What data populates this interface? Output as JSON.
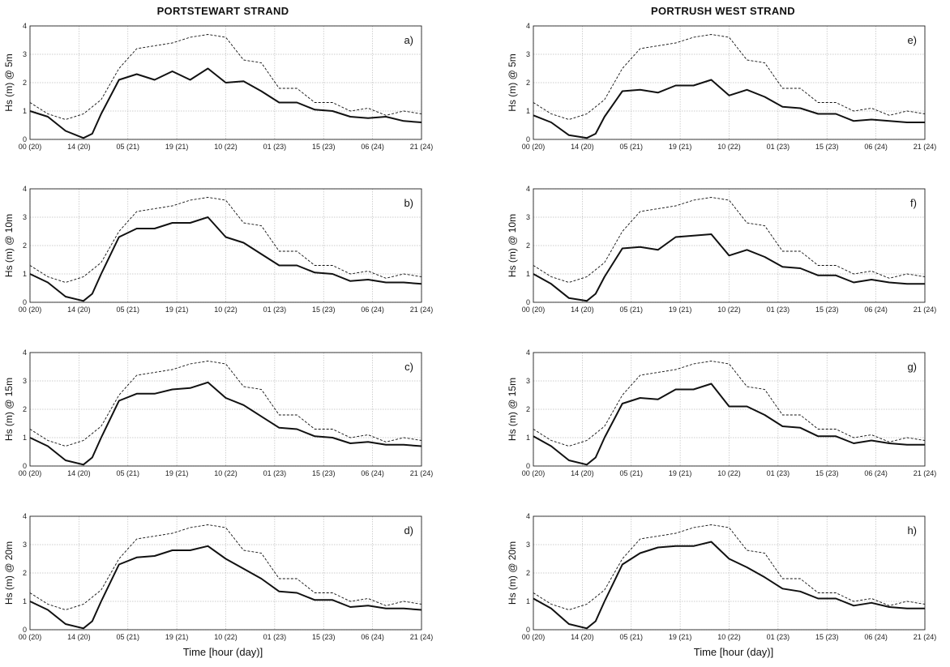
{
  "titles": {
    "left": "PORTSTEWART STRAND",
    "right": "PORTRUSH WEST STRAND"
  },
  "xlabel": "Time [hour (day)]",
  "chart_data": [
    {
      "type": "line",
      "panel": "a)",
      "ylabel": "Hs (m) @ 5m",
      "ylim": [
        0,
        4
      ],
      "yticks": [
        "0",
        "1",
        "2",
        "3",
        "4"
      ],
      "xlim": [
        0,
        22
      ],
      "xticks": [
        "00 (20)",
        "14 (20)",
        "05 (21)",
        "19 (21)",
        "10 (22)",
        "01 (23)",
        "15 (23)",
        "06 (24)",
        "21 (24)"
      ],
      "grid": true,
      "series": [
        {
          "style": "solid",
          "x": [
            0,
            1,
            2,
            3,
            3.5,
            4,
            5,
            6,
            7,
            8,
            9,
            10,
            11,
            12,
            13,
            14,
            15,
            16,
            17,
            18,
            19,
            20,
            21,
            22
          ],
          "y": [
            1.0,
            0.8,
            0.3,
            0.05,
            0.2,
            0.9,
            2.1,
            2.3,
            2.1,
            2.4,
            2.1,
            2.5,
            2.0,
            2.05,
            1.7,
            1.3,
            1.3,
            1.05,
            1.0,
            0.8,
            0.75,
            0.8,
            0.65,
            0.6
          ]
        },
        {
          "style": "dashed",
          "x": [
            0,
            1,
            2,
            3,
            4,
            5,
            6,
            7,
            8,
            9,
            10,
            11,
            12,
            13,
            14,
            15,
            16,
            17,
            18,
            19,
            20,
            21,
            22
          ],
          "y": [
            1.3,
            0.9,
            0.7,
            0.9,
            1.4,
            2.5,
            3.2,
            3.3,
            3.4,
            3.6,
            3.7,
            3.6,
            2.8,
            2.7,
            1.8,
            1.8,
            1.3,
            1.3,
            1.0,
            1.1,
            0.85,
            1.0,
            0.9
          ]
        }
      ]
    },
    {
      "type": "line",
      "panel": "b)",
      "ylabel": "Hs (m) @ 10m",
      "ylim": [
        0,
        4
      ],
      "yticks": [
        "0",
        "1",
        "2",
        "3",
        "4"
      ],
      "xlim": [
        0,
        22
      ],
      "xticks": [
        "00 (20)",
        "14 (20)",
        "05 (21)",
        "19 (21)",
        "10 (22)",
        "01 (23)",
        "15 (23)",
        "06 (24)",
        "21 (24)"
      ],
      "grid": true,
      "series": [
        {
          "style": "solid",
          "x": [
            0,
            1,
            2,
            3,
            3.5,
            4,
            5,
            6,
            7,
            8,
            9,
            10,
            11,
            12,
            13,
            14,
            15,
            16,
            17,
            18,
            19,
            20,
            21,
            22
          ],
          "y": [
            1.0,
            0.7,
            0.2,
            0.05,
            0.3,
            1.0,
            2.3,
            2.6,
            2.6,
            2.8,
            2.8,
            3.0,
            2.3,
            2.1,
            1.7,
            1.3,
            1.3,
            1.05,
            1.0,
            0.75,
            0.8,
            0.7,
            0.7,
            0.65
          ]
        },
        {
          "style": "dashed",
          "x": [
            0,
            1,
            2,
            3,
            4,
            5,
            6,
            7,
            8,
            9,
            10,
            11,
            12,
            13,
            14,
            15,
            16,
            17,
            18,
            19,
            20,
            21,
            22
          ],
          "y": [
            1.3,
            0.9,
            0.7,
            0.9,
            1.4,
            2.5,
            3.2,
            3.3,
            3.4,
            3.6,
            3.7,
            3.6,
            2.8,
            2.7,
            1.8,
            1.8,
            1.3,
            1.3,
            1.0,
            1.1,
            0.85,
            1.0,
            0.9
          ]
        }
      ]
    },
    {
      "type": "line",
      "panel": "c)",
      "ylabel": "Hs (m) @ 15m",
      "ylim": [
        0,
        4
      ],
      "yticks": [
        "0",
        "1",
        "2",
        "3",
        "4"
      ],
      "xlim": [
        0,
        22
      ],
      "xticks": [
        "00 (20)",
        "14 (20)",
        "05 (21)",
        "19 (21)",
        "10 (22)",
        "01 (23)",
        "15 (23)",
        "06 (24)",
        "21 (24)"
      ],
      "grid": true,
      "series": [
        {
          "style": "solid",
          "x": [
            0,
            1,
            2,
            3,
            3.5,
            4,
            5,
            6,
            7,
            8,
            9,
            10,
            11,
            12,
            13,
            14,
            15,
            16,
            17,
            18,
            19,
            20,
            21,
            22
          ],
          "y": [
            1.0,
            0.7,
            0.2,
            0.05,
            0.3,
            1.0,
            2.3,
            2.55,
            2.55,
            2.7,
            2.75,
            2.95,
            2.4,
            2.15,
            1.75,
            1.35,
            1.3,
            1.05,
            1.0,
            0.8,
            0.85,
            0.75,
            0.75,
            0.7
          ]
        },
        {
          "style": "dashed",
          "x": [
            0,
            1,
            2,
            3,
            4,
            5,
            6,
            7,
            8,
            9,
            10,
            11,
            12,
            13,
            14,
            15,
            16,
            17,
            18,
            19,
            20,
            21,
            22
          ],
          "y": [
            1.3,
            0.9,
            0.7,
            0.9,
            1.4,
            2.5,
            3.2,
            3.3,
            3.4,
            3.6,
            3.7,
            3.6,
            2.8,
            2.7,
            1.8,
            1.8,
            1.3,
            1.3,
            1.0,
            1.1,
            0.85,
            1.0,
            0.9
          ]
        }
      ]
    },
    {
      "type": "line",
      "panel": "d)",
      "ylabel": "Hs (m) @ 20m",
      "ylim": [
        0,
        4
      ],
      "yticks": [
        "0",
        "1",
        "2",
        "3",
        "4"
      ],
      "xlim": [
        0,
        22
      ],
      "xticks": [
        "00 (20)",
        "14 (20)",
        "05 (21)",
        "19 (21)",
        "10 (22)",
        "01 (23)",
        "15 (23)",
        "06 (24)",
        "21 (24)"
      ],
      "grid": true,
      "series": [
        {
          "style": "solid",
          "x": [
            0,
            1,
            2,
            3,
            3.5,
            4,
            5,
            6,
            7,
            8,
            9,
            10,
            11,
            12,
            13,
            14,
            15,
            16,
            17,
            18,
            19,
            20,
            21,
            22
          ],
          "y": [
            1.0,
            0.7,
            0.2,
            0.05,
            0.3,
            1.0,
            2.3,
            2.55,
            2.6,
            2.8,
            2.8,
            2.95,
            2.5,
            2.15,
            1.8,
            1.35,
            1.3,
            1.05,
            1.05,
            0.8,
            0.85,
            0.75,
            0.75,
            0.7
          ]
        },
        {
          "style": "dashed",
          "x": [
            0,
            1,
            2,
            3,
            4,
            5,
            6,
            7,
            8,
            9,
            10,
            11,
            12,
            13,
            14,
            15,
            16,
            17,
            18,
            19,
            20,
            21,
            22
          ],
          "y": [
            1.3,
            0.9,
            0.7,
            0.9,
            1.4,
            2.5,
            3.2,
            3.3,
            3.4,
            3.6,
            3.7,
            3.6,
            2.8,
            2.7,
            1.8,
            1.8,
            1.3,
            1.3,
            1.0,
            1.1,
            0.85,
            1.0,
            0.9
          ]
        }
      ]
    },
    {
      "type": "line",
      "panel": "e)",
      "ylabel": "Hs (m) @ 5m",
      "ylim": [
        0,
        4
      ],
      "yticks": [
        "0",
        "1",
        "2",
        "3",
        "4"
      ],
      "xlim": [
        0,
        22
      ],
      "xticks": [
        "00 (20)",
        "14 (20)",
        "05 (21)",
        "19 (21)",
        "10 (22)",
        "01 (23)",
        "15 (23)",
        "06 (24)",
        "21 (24)"
      ],
      "grid": true,
      "series": [
        {
          "style": "solid",
          "x": [
            0,
            1,
            2,
            3,
            3.5,
            4,
            5,
            6,
            7,
            8,
            9,
            10,
            11,
            12,
            13,
            14,
            15,
            16,
            17,
            18,
            19,
            20,
            21,
            22
          ],
          "y": [
            0.85,
            0.6,
            0.15,
            0.05,
            0.2,
            0.8,
            1.7,
            1.75,
            1.65,
            1.9,
            1.9,
            2.1,
            1.55,
            1.75,
            1.5,
            1.15,
            1.1,
            0.9,
            0.9,
            0.65,
            0.7,
            0.65,
            0.6,
            0.6
          ]
        },
        {
          "style": "dashed",
          "x": [
            0,
            1,
            2,
            3,
            4,
            5,
            6,
            7,
            8,
            9,
            10,
            11,
            12,
            13,
            14,
            15,
            16,
            17,
            18,
            19,
            20,
            21,
            22
          ],
          "y": [
            1.3,
            0.9,
            0.7,
            0.9,
            1.4,
            2.5,
            3.2,
            3.3,
            3.4,
            3.6,
            3.7,
            3.6,
            2.8,
            2.7,
            1.8,
            1.8,
            1.3,
            1.3,
            1.0,
            1.1,
            0.85,
            1.0,
            0.9
          ]
        }
      ]
    },
    {
      "type": "line",
      "panel": "f)",
      "ylabel": "Hs (m) @ 10m",
      "ylim": [
        0,
        4
      ],
      "yticks": [
        "0",
        "1",
        "2",
        "3",
        "4"
      ],
      "xlim": [
        0,
        22
      ],
      "xticks": [
        "00 (20)",
        "14 (20)",
        "05 (21)",
        "19 (21)",
        "10 (22)",
        "01 (23)",
        "15 (23)",
        "06 (24)",
        "21 (24)"
      ],
      "grid": true,
      "series": [
        {
          "style": "solid",
          "x": [
            0,
            1,
            2,
            3,
            3.5,
            4,
            5,
            6,
            7,
            8,
            9,
            10,
            11,
            12,
            13,
            14,
            15,
            16,
            17,
            18,
            19,
            20,
            21,
            22
          ],
          "y": [
            1.0,
            0.65,
            0.15,
            0.05,
            0.3,
            0.9,
            1.9,
            1.95,
            1.85,
            2.3,
            2.35,
            2.4,
            1.65,
            1.85,
            1.6,
            1.25,
            1.2,
            0.95,
            0.95,
            0.7,
            0.8,
            0.7,
            0.65,
            0.65
          ]
        },
        {
          "style": "dashed",
          "x": [
            0,
            1,
            2,
            3,
            4,
            5,
            6,
            7,
            8,
            9,
            10,
            11,
            12,
            13,
            14,
            15,
            16,
            17,
            18,
            19,
            20,
            21,
            22
          ],
          "y": [
            1.3,
            0.9,
            0.7,
            0.9,
            1.4,
            2.5,
            3.2,
            3.3,
            3.4,
            3.6,
            3.7,
            3.6,
            2.8,
            2.7,
            1.8,
            1.8,
            1.3,
            1.3,
            1.0,
            1.1,
            0.85,
            1.0,
            0.9
          ]
        }
      ]
    },
    {
      "type": "line",
      "panel": "g)",
      "ylabel": "Hs (m) @ 15m",
      "ylim": [
        0,
        4
      ],
      "yticks": [
        "0",
        "1",
        "2",
        "3",
        "4"
      ],
      "xlim": [
        0,
        22
      ],
      "xticks": [
        "00 (20)",
        "14 (20)",
        "05 (21)",
        "19 (21)",
        "10 (22)",
        "01 (23)",
        "15 (23)",
        "06 (24)",
        "21 (24)"
      ],
      "grid": true,
      "series": [
        {
          "style": "solid",
          "x": [
            0,
            1,
            2,
            3,
            3.5,
            4,
            5,
            6,
            7,
            8,
            9,
            10,
            11,
            12,
            13,
            14,
            15,
            16,
            17,
            18,
            19,
            20,
            21,
            22
          ],
          "y": [
            1.05,
            0.7,
            0.2,
            0.05,
            0.3,
            1.0,
            2.2,
            2.4,
            2.35,
            2.7,
            2.7,
            2.9,
            2.1,
            2.1,
            1.8,
            1.4,
            1.35,
            1.05,
            1.05,
            0.8,
            0.9,
            0.8,
            0.75,
            0.75
          ]
        },
        {
          "style": "dashed",
          "x": [
            0,
            1,
            2,
            3,
            4,
            5,
            6,
            7,
            8,
            9,
            10,
            11,
            12,
            13,
            14,
            15,
            16,
            17,
            18,
            19,
            20,
            21,
            22
          ],
          "y": [
            1.3,
            0.9,
            0.7,
            0.9,
            1.4,
            2.5,
            3.2,
            3.3,
            3.4,
            3.6,
            3.7,
            3.6,
            2.8,
            2.7,
            1.8,
            1.8,
            1.3,
            1.3,
            1.0,
            1.1,
            0.85,
            1.0,
            0.9
          ]
        }
      ]
    },
    {
      "type": "line",
      "panel": "h)",
      "ylabel": "Hs (m) @ 20m",
      "ylim": [
        0,
        4
      ],
      "yticks": [
        "0",
        "1",
        "2",
        "3",
        "4"
      ],
      "xlim": [
        0,
        22
      ],
      "xticks": [
        "00 (20)",
        "14 (20)",
        "05 (21)",
        "19 (21)",
        "10 (22)",
        "01 (23)",
        "15 (23)",
        "06 (24)",
        "21 (24)"
      ],
      "grid": true,
      "series": [
        {
          "style": "solid",
          "x": [
            0,
            1,
            2,
            3,
            3.5,
            4,
            5,
            6,
            7,
            8,
            9,
            10,
            11,
            12,
            13,
            14,
            15,
            16,
            17,
            18,
            19,
            20,
            21,
            22
          ],
          "y": [
            1.1,
            0.75,
            0.2,
            0.05,
            0.3,
            1.0,
            2.3,
            2.7,
            2.9,
            2.95,
            2.95,
            3.1,
            2.5,
            2.2,
            1.85,
            1.45,
            1.35,
            1.1,
            1.1,
            0.85,
            0.95,
            0.8,
            0.75,
            0.75
          ]
        },
        {
          "style": "dashed",
          "x": [
            0,
            1,
            2,
            3,
            4,
            5,
            6,
            7,
            8,
            9,
            10,
            11,
            12,
            13,
            14,
            15,
            16,
            17,
            18,
            19,
            20,
            21,
            22
          ],
          "y": [
            1.3,
            0.9,
            0.7,
            0.9,
            1.4,
            2.5,
            3.2,
            3.3,
            3.4,
            3.6,
            3.7,
            3.6,
            2.8,
            2.7,
            1.8,
            1.8,
            1.3,
            1.3,
            1.0,
            1.1,
            0.85,
            1.0,
            0.9
          ]
        }
      ]
    }
  ]
}
